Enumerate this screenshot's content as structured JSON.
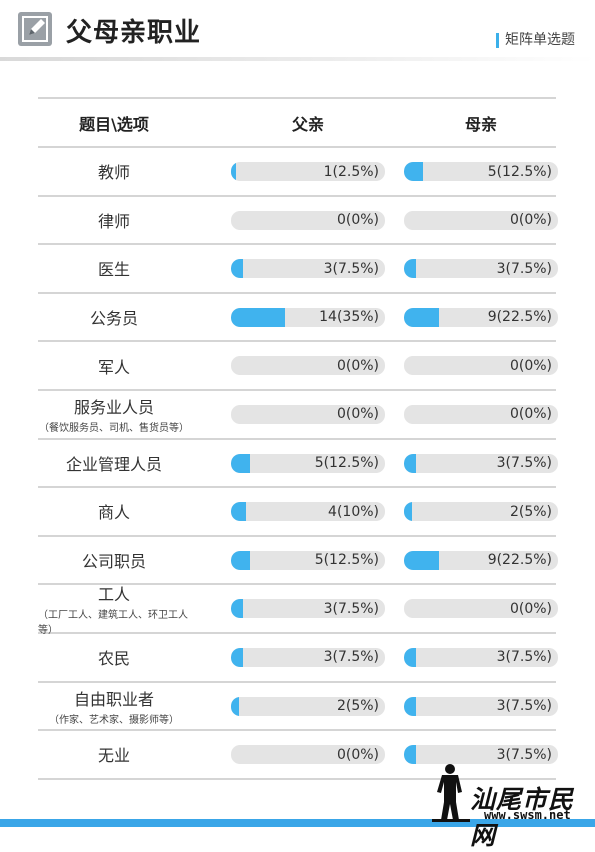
{
  "header": {
    "title": "父母亲职业",
    "type_label": "矩阵单选题",
    "icon": "pencil-edit-icon"
  },
  "table": {
    "col_header_item": "题目\\选项",
    "col_header_father": "父亲",
    "col_header_mother": "母亲",
    "rows": [
      {
        "label": "教师",
        "sub": "",
        "father": {
          "text": "1(2.5%)",
          "pct": 2.5
        },
        "mother": {
          "text": "5(12.5%)",
          "pct": 12.5
        }
      },
      {
        "label": "律师",
        "sub": "",
        "father": {
          "text": "0(0%)",
          "pct": 0
        },
        "mother": {
          "text": "0(0%)",
          "pct": 0
        }
      },
      {
        "label": "医生",
        "sub": "",
        "father": {
          "text": "3(7.5%)",
          "pct": 7.5
        },
        "mother": {
          "text": "3(7.5%)",
          "pct": 7.5
        }
      },
      {
        "label": "公务员",
        "sub": "",
        "father": {
          "text": "14(35%)",
          "pct": 35
        },
        "mother": {
          "text": "9(22.5%)",
          "pct": 22.5
        }
      },
      {
        "label": "军人",
        "sub": "",
        "father": {
          "text": "0(0%)",
          "pct": 0
        },
        "mother": {
          "text": "0(0%)",
          "pct": 0
        }
      },
      {
        "label": "服务业人员",
        "sub": "（餐饮服务员、司机、售货员等）",
        "father": {
          "text": "0(0%)",
          "pct": 0
        },
        "mother": {
          "text": "0(0%)",
          "pct": 0
        }
      },
      {
        "label": "企业管理人员",
        "sub": "",
        "father": {
          "text": "5(12.5%)",
          "pct": 12.5
        },
        "mother": {
          "text": "3(7.5%)",
          "pct": 7.5
        }
      },
      {
        "label": "商人",
        "sub": "",
        "father": {
          "text": "4(10%)",
          "pct": 10
        },
        "mother": {
          "text": "2(5%)",
          "pct": 5
        }
      },
      {
        "label": "公司职员",
        "sub": "",
        "father": {
          "text": "5(12.5%)",
          "pct": 12.5
        },
        "mother": {
          "text": "9(22.5%)",
          "pct": 22.5
        }
      },
      {
        "label": "工人",
        "sub": "（工厂工人、建筑工人、环卫工人等）",
        "father": {
          "text": "3(7.5%)",
          "pct": 7.5
        },
        "mother": {
          "text": "0(0%)",
          "pct": 0
        }
      },
      {
        "label": "农民",
        "sub": "",
        "father": {
          "text": "3(7.5%)",
          "pct": 7.5
        },
        "mother": {
          "text": "3(7.5%)",
          "pct": 7.5
        }
      },
      {
        "label": "自由职业者",
        "sub": "（作家、艺术家、摄影师等）",
        "father": {
          "text": "2(5%)",
          "pct": 5
        },
        "mother": {
          "text": "3(7.5%)",
          "pct": 7.5
        }
      },
      {
        "label": "无业",
        "sub": "",
        "father": {
          "text": "0(0%)",
          "pct": 0
        },
        "mother": {
          "text": "3(7.5%)",
          "pct": 7.5
        }
      }
    ]
  },
  "watermark": {
    "name": "汕尾市民网",
    "url": "www.swsm.net"
  },
  "colors": {
    "accent": "#40b3ee",
    "track": "#e4e4e4",
    "divider": "#d5d5d5"
  }
}
